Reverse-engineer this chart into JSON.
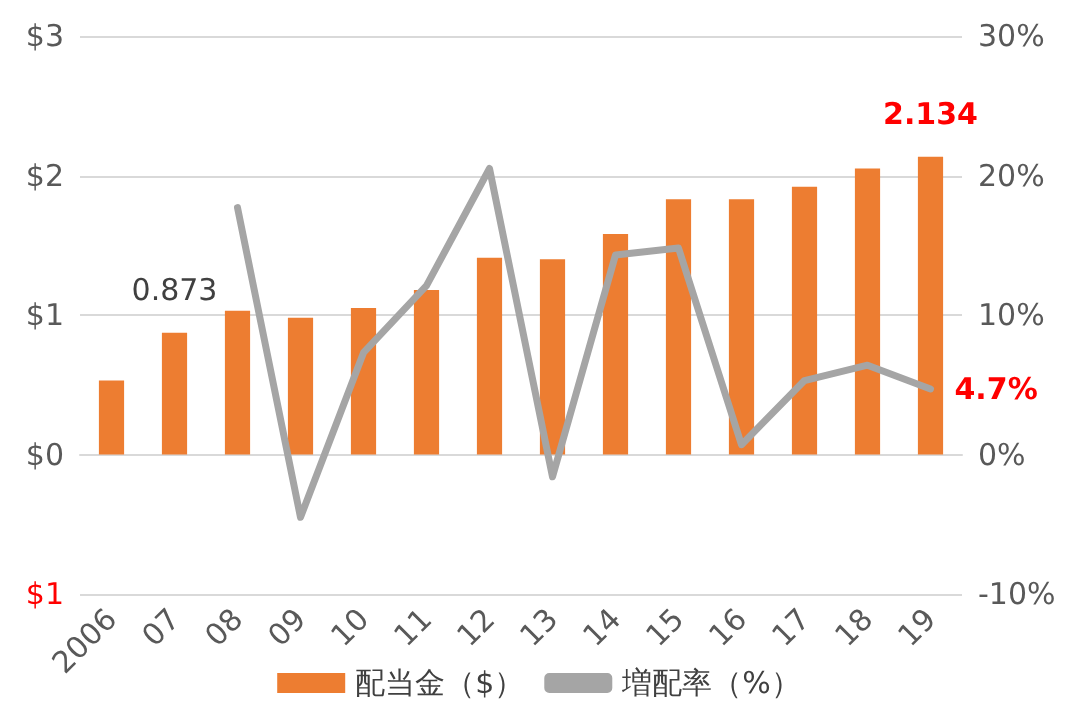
{
  "chart_data": {
    "type": "bar",
    "categories": [
      "2006",
      "07",
      "08",
      "09",
      "10",
      "11",
      "12",
      "13",
      "14",
      "15",
      "16",
      "17",
      "18",
      "19"
    ],
    "series": [
      {
        "name": "配当金（$）",
        "color": "#ed7d31",
        "values": [
          0.53,
          0.873,
          1.03,
          0.98,
          1.05,
          1.18,
          1.41,
          1.4,
          1.58,
          1.83,
          1.83,
          1.92,
          2.05,
          2.134
        ],
        "value_labels": [
          null,
          "0.873",
          null,
          null,
          null,
          null,
          null,
          null,
          null,
          null,
          null,
          null,
          null,
          "2.134"
        ]
      },
      {
        "name": "増配率（%）",
        "type": "line",
        "axis": "y2",
        "color": "#a5a5a5",
        "values": [
          null,
          null,
          17.7,
          -4.5,
          7.3,
          12.1,
          20.5,
          -1.6,
          14.3,
          14.8,
          0.7,
          5.3,
          6.4,
          4.7
        ],
        "value_labels": [
          null,
          null,
          null,
          null,
          null,
          null,
          null,
          null,
          null,
          null,
          null,
          null,
          null,
          "4.7%"
        ]
      }
    ],
    "ylim": [
      -1,
      3
    ],
    "yticks": [
      {
        "value": -1,
        "label": "$1"
      },
      {
        "value": 0,
        "label": "$0"
      },
      {
        "value": 1,
        "label": "$1"
      },
      {
        "value": 2,
        "label": "$2"
      },
      {
        "value": 3,
        "label": "$3"
      }
    ],
    "y2lim": [
      -10,
      30
    ],
    "y2ticks": [
      {
        "value": -10,
        "label": "-10%"
      },
      {
        "value": 0,
        "label": "0%"
      },
      {
        "value": 10,
        "label": "10%"
      },
      {
        "value": 20,
        "label": "20%"
      },
      {
        "value": 30,
        "label": "30%"
      }
    ],
    "grid": "y",
    "legend": "bottom",
    "marker": "none",
    "line_style": "solid"
  }
}
